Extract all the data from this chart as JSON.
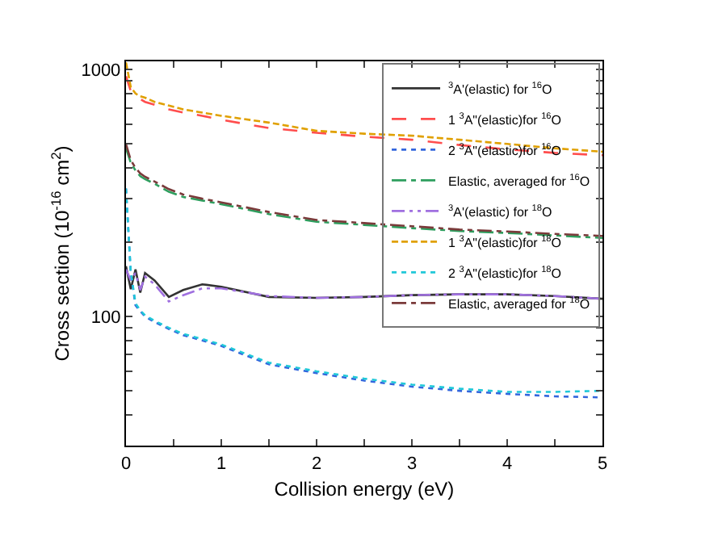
{
  "chart_data": {
    "type": "line",
    "xlabel": "Collision energy (eV)",
    "ylabel": "Cross section (10$^{-16}$ cm$^{2}$)",
    "x": [
      0,
      0.05,
      0.1,
      0.15,
      0.2,
      0.3,
      0.45,
      0.6,
      0.8,
      1,
      1.5,
      2,
      2.5,
      3,
      3.5,
      4,
      4.5,
      5
    ],
    "xlim": [
      0,
      5
    ],
    "xticks": [
      0,
      {
        "value": 0.5,
        "label": null
      },
      1,
      {
        "value": 1.5,
        "label": null
      },
      2,
      {
        "value": 2.5,
        "label": null
      },
      3,
      {
        "value": 3.5,
        "label": null
      },
      4,
      {
        "value": 4.5,
        "label": null
      },
      5
    ],
    "ylim": [
      30,
      1080
    ],
    "yticks": [
      {
        "value": 40,
        "label": null
      },
      {
        "value": 50,
        "label": null
      },
      {
        "value": 60,
        "label": null
      },
      {
        "value": 70,
        "label": null
      },
      {
        "value": 80,
        "label": null
      },
      {
        "value": 90,
        "label": null
      },
      100,
      {
        "value": 200,
        "label": null
      },
      {
        "value": 300,
        "label": null
      },
      {
        "value": 400,
        "label": null
      },
      {
        "value": 500,
        "label": null
      },
      {
        "value": 600,
        "label": null
      },
      {
        "value": 700,
        "label": null
      },
      {
        "value": 800,
        "label": null
      },
      {
        "value": 900,
        "label": null
      },
      1000
    ],
    "log": "y",
    "grid": false,
    "legend": "top right",
    "marker": "none",
    "series": [
      {
        "name": "$^{3}$A'(elastic) for $^{16}$O",
        "color": "#333333",
        "line_style": "solid",
        "values": [
          160,
          129,
          155,
          125,
          150,
          140,
          120,
          128,
          135,
          132,
          120,
          119,
          120,
          122,
          123,
          123,
          121,
          118
        ]
      },
      {
        "name": "1 $^{3}$A\"(elastic)for $^{16}$O",
        "color": "#ff4d4d",
        "line_style": "dashed",
        "values": [
          940,
          820,
          780,
          760,
          740,
          720,
          690,
          670,
          650,
          626,
          580,
          555,
          535,
          520,
          495,
          475,
          460,
          450
        ]
      },
      {
        "name": "2 $^{3}$A\"(elastic)for $^{16}$O",
        "color": "#3366dd",
        "line_style": "dotted",
        "values": [
          330,
          150,
          111,
          105,
          100,
          95,
          89,
          84,
          80,
          76,
          64,
          59,
          55,
          52,
          50,
          48.6,
          47.5,
          47
        ]
      },
      {
        "name": "Elastic, averaged for $^{16}$O",
        "color": "#2e9e5e",
        "line_style": "dashdot",
        "values": [
          480,
          420,
          390,
          370,
          360,
          345,
          320,
          305,
          295,
          285,
          260,
          242,
          235,
          228,
          222,
          218,
          213,
          208
        ]
      },
      {
        "name": "$^{3}$A'(elastic) for $^{18}$O",
        "color": "#a070e0",
        "line_style": "dashdotdot",
        "values": [
          155,
          140,
          150,
          128,
          145,
          135,
          115,
          122,
          130,
          130,
          121,
          119,
          120,
          122,
          123,
          123,
          121,
          118
        ]
      },
      {
        "name": "1 $^{3}$A\"(elastic)for $^{18}$O",
        "color": "#e0a000",
        "line_style": "shortdash",
        "values": [
          1070,
          850,
          800,
          780,
          770,
          740,
          715,
          690,
          670,
          650,
          610,
          565,
          550,
          540,
          520,
          500,
          480,
          465
        ]
      },
      {
        "name": "2 $^{3}$A\"(elastic)for $^{18}$O",
        "color": "#20c8d8",
        "line_style": "dotted",
        "values": [
          330,
          152,
          113,
          106,
          101,
          96,
          90,
          85,
          81,
          77,
          65,
          60,
          56,
          53,
          51,
          49.5,
          49.5,
          50
        ]
      },
      {
        "name": "Elastic, averaged for $^{18}$O",
        "color": "#7a3a3a",
        "line_style": "dashdot",
        "values": [
          500,
          430,
          400,
          380,
          368,
          352,
          328,
          312,
          300,
          290,
          265,
          246,
          239,
          232,
          225,
          221,
          216,
          212
        ]
      }
    ]
  }
}
